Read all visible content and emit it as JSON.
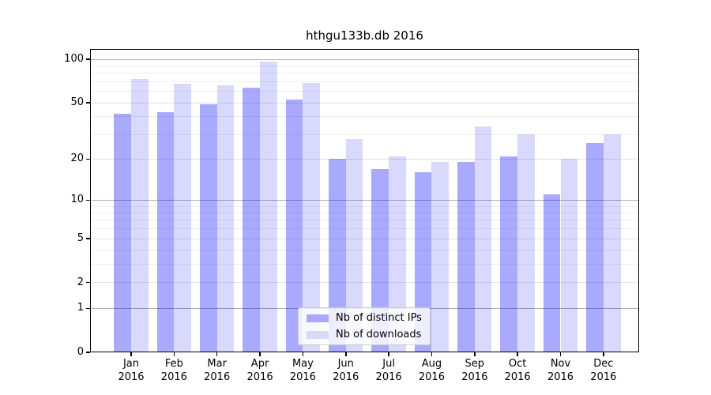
{
  "chart_data": {
    "type": "bar",
    "title": "hthgu133b.db 2016",
    "year": "2016",
    "months": [
      "Jan",
      "Feb",
      "Mar",
      "Apr",
      "May",
      "Jun",
      "Jul",
      "Aug",
      "Sep",
      "Oct",
      "Nov",
      "Dec"
    ],
    "series": [
      {
        "name": "Nb of distinct IPs",
        "values": [
          42,
          43,
          49,
          64,
          53,
          20,
          17,
          16,
          19,
          21,
          11,
          26
        ],
        "bar_color": "rgba(10,10,250,0.35)",
        "legend_hex": "#a9a9f7"
      },
      {
        "name": "Nb of downloads",
        "values": [
          73,
          68,
          66,
          96,
          69,
          28,
          21,
          19,
          34,
          30,
          20,
          30
        ],
        "bar_color": "rgba(10,10,250,0.155)",
        "legend_hex": "#d9d9fa"
      }
    ],
    "y_scale": "log10(1+v)",
    "y_ticks": [
      100,
      50,
      20,
      10,
      5,
      2,
      1,
      0
    ],
    "y_major_gridlines": [
      100,
      10,
      1
    ],
    "y_mid_gridlines": [
      50,
      20,
      5,
      2
    ],
    "y_minor_gridlines": [
      90,
      80,
      70,
      60,
      40,
      30,
      9,
      8,
      7,
      6,
      4,
      3
    ],
    "ylim": [
      0,
      118
    ],
    "grid": true,
    "legend_position": "bottom-center",
    "colors": {
      "grid_major": "#b0b0b0",
      "grid_mid": "#e3e3e7",
      "grid_minor": "#eeeef1",
      "axis": "#000000",
      "background": "#ffffff"
    }
  }
}
